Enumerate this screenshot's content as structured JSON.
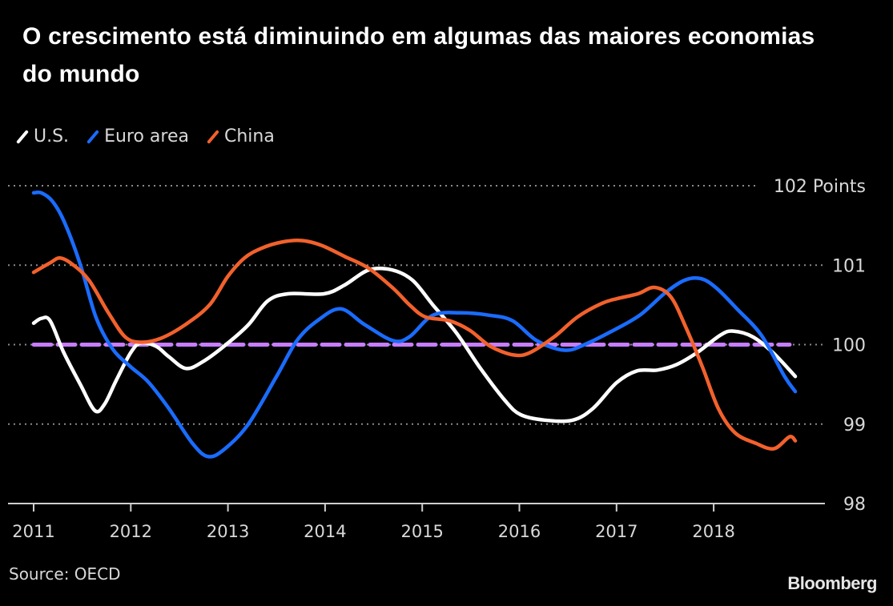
{
  "chart_data": {
    "type": "line",
    "title": "O crescimento está diminuindo em algumas das maiores economias do mundo",
    "xlabel": "",
    "ylabel": "",
    "y_unit_label": "Points",
    "ylim": [
      98,
      102
    ],
    "yticks": [
      98,
      99,
      100,
      101,
      102
    ],
    "ytick_labels": [
      "98",
      "99",
      "100",
      "101",
      "102 Points"
    ],
    "xlim": [
      2011.0,
      2018.9
    ],
    "xticks": [
      2011,
      2012,
      2013,
      2014,
      2015,
      2016,
      2017,
      2018
    ],
    "xtick_labels": [
      "2011",
      "2012",
      "2013",
      "2014",
      "2015",
      "2016",
      "2017",
      "2018"
    ],
    "grid": "horizontal-dotted",
    "legend_position": "top-left",
    "reference_line": {
      "value": 100,
      "style": "dashed",
      "color": "#c77dff"
    },
    "x_frequency": "monthly",
    "x_start": 2011.0,
    "series": [
      {
        "name": "U.S.",
        "color": "#ffffff",
        "points": [
          [
            2011.0,
            100.27
          ],
          [
            2011.08,
            100.33
          ],
          [
            2011.17,
            100.3
          ],
          [
            2011.31,
            99.9
          ],
          [
            2011.48,
            99.5
          ],
          [
            2011.63,
            99.17
          ],
          [
            2011.73,
            99.25
          ],
          [
            2011.85,
            99.55
          ],
          [
            2012.0,
            99.9
          ],
          [
            2012.1,
            100.02
          ],
          [
            2012.26,
            99.98
          ],
          [
            2012.39,
            99.85
          ],
          [
            2012.57,
            99.7
          ],
          [
            2012.76,
            99.8
          ],
          [
            2013.0,
            100.02
          ],
          [
            2013.21,
            100.25
          ],
          [
            2013.41,
            100.55
          ],
          [
            2013.62,
            100.64
          ],
          [
            2013.99,
            100.64
          ],
          [
            2014.2,
            100.75
          ],
          [
            2014.45,
            100.94
          ],
          [
            2014.69,
            100.94
          ],
          [
            2014.9,
            100.81
          ],
          [
            2015.11,
            100.5
          ],
          [
            2015.35,
            100.15
          ],
          [
            2015.6,
            99.7
          ],
          [
            2015.85,
            99.3
          ],
          [
            2016.01,
            99.12
          ],
          [
            2016.26,
            99.05
          ],
          [
            2016.55,
            99.05
          ],
          [
            2016.76,
            99.2
          ],
          [
            2017.0,
            99.52
          ],
          [
            2017.21,
            99.67
          ],
          [
            2017.42,
            99.68
          ],
          [
            2017.62,
            99.75
          ],
          [
            2017.83,
            99.9
          ],
          [
            2018.07,
            100.12
          ],
          [
            2018.2,
            100.17
          ],
          [
            2018.4,
            100.1
          ],
          [
            2018.61,
            99.9
          ],
          [
            2018.84,
            99.6
          ]
        ]
      },
      {
        "name": "Euro area",
        "color": "#1a6cff",
        "points": [
          [
            2011.0,
            101.91
          ],
          [
            2011.08,
            101.91
          ],
          [
            2011.19,
            101.81
          ],
          [
            2011.31,
            101.56
          ],
          [
            2011.48,
            101.01
          ],
          [
            2011.64,
            100.35
          ],
          [
            2011.81,
            99.95
          ],
          [
            2012.0,
            99.72
          ],
          [
            2012.18,
            99.53
          ],
          [
            2012.39,
            99.2
          ],
          [
            2012.64,
            98.75
          ],
          [
            2012.8,
            98.59
          ],
          [
            2012.97,
            98.69
          ],
          [
            2013.21,
            99.0
          ],
          [
            2013.5,
            99.6
          ],
          [
            2013.71,
            100.05
          ],
          [
            2013.92,
            100.3
          ],
          [
            2014.16,
            100.45
          ],
          [
            2014.41,
            100.25
          ],
          [
            2014.7,
            100.05
          ],
          [
            2014.87,
            100.1
          ],
          [
            2015.11,
            100.37
          ],
          [
            2015.4,
            100.4
          ],
          [
            2015.69,
            100.37
          ],
          [
            2015.93,
            100.3
          ],
          [
            2016.18,
            100.05
          ],
          [
            2016.46,
            99.93
          ],
          [
            2016.67,
            100.0
          ],
          [
            2017.0,
            100.2
          ],
          [
            2017.25,
            100.38
          ],
          [
            2017.5,
            100.65
          ],
          [
            2017.7,
            100.81
          ],
          [
            2017.87,
            100.83
          ],
          [
            2018.03,
            100.71
          ],
          [
            2018.24,
            100.45
          ],
          [
            2018.49,
            100.12
          ],
          [
            2018.73,
            99.6
          ],
          [
            2018.84,
            99.41
          ]
        ]
      },
      {
        "name": "China",
        "color": "#f2612c",
        "points": [
          [
            2011.0,
            100.91
          ],
          [
            2011.17,
            101.03
          ],
          [
            2011.27,
            101.09
          ],
          [
            2011.4,
            101.01
          ],
          [
            2011.57,
            100.81
          ],
          [
            2011.77,
            100.4
          ],
          [
            2011.94,
            100.1
          ],
          [
            2012.1,
            100.03
          ],
          [
            2012.31,
            100.08
          ],
          [
            2012.56,
            100.25
          ],
          [
            2012.81,
            100.5
          ],
          [
            2013.0,
            100.86
          ],
          [
            2013.17,
            101.09
          ],
          [
            2013.34,
            101.21
          ],
          [
            2013.55,
            101.29
          ],
          [
            2013.76,
            101.31
          ],
          [
            2013.96,
            101.25
          ],
          [
            2014.2,
            101.11
          ],
          [
            2014.45,
            100.96
          ],
          [
            2014.7,
            100.71
          ],
          [
            2014.87,
            100.5
          ],
          [
            2015.03,
            100.35
          ],
          [
            2015.28,
            100.3
          ],
          [
            2015.49,
            100.18
          ],
          [
            2015.7,
            99.98
          ],
          [
            2015.94,
            99.87
          ],
          [
            2016.11,
            99.9
          ],
          [
            2016.36,
            100.1
          ],
          [
            2016.6,
            100.35
          ],
          [
            2016.85,
            100.52
          ],
          [
            2017.01,
            100.58
          ],
          [
            2017.22,
            100.64
          ],
          [
            2017.39,
            100.72
          ],
          [
            2017.56,
            100.6
          ],
          [
            2017.72,
            100.2
          ],
          [
            2017.89,
            99.7
          ],
          [
            2018.05,
            99.19
          ],
          [
            2018.22,
            98.89
          ],
          [
            2018.43,
            98.76
          ],
          [
            2018.62,
            98.69
          ],
          [
            2018.78,
            98.84
          ],
          [
            2018.84,
            98.79
          ]
        ]
      }
    ],
    "source": "Source: OECD",
    "brand": "Bloomberg"
  },
  "header": {
    "title": "O crescimento está diminuindo em algumas das maiores economias do mundo"
  },
  "legend": {
    "items": [
      {
        "label": "U.S.",
        "color": "#ffffff"
      },
      {
        "label": "Euro area",
        "color": "#1a6cff"
      },
      {
        "label": "China",
        "color": "#f2612c"
      }
    ]
  },
  "footer": {
    "source": "Source: OECD",
    "brand": "Bloomberg"
  }
}
